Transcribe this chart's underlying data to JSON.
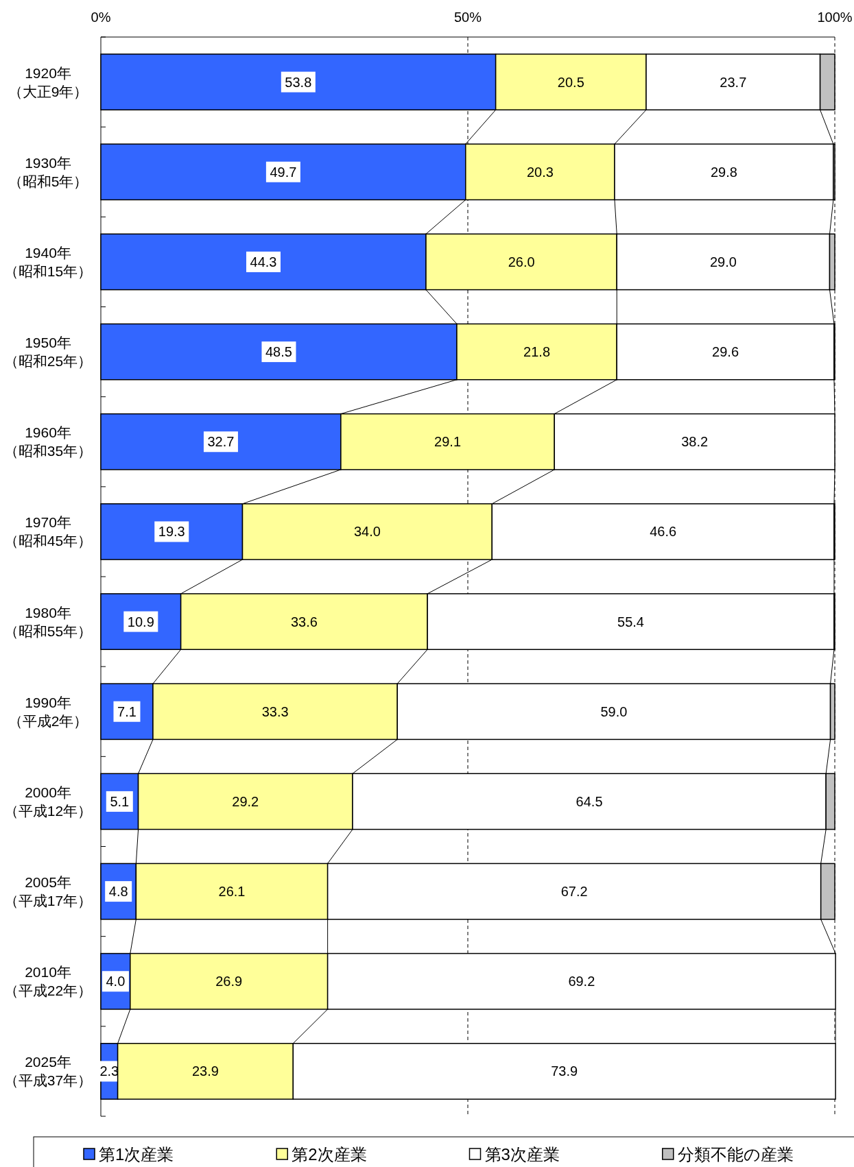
{
  "chart_data": {
    "type": "bar",
    "orientation": "horizontal",
    "stacked": true,
    "categories": [
      "1920年（大正9年）",
      "1930年（昭和5年）",
      "1940年（昭和15年）",
      "1950年（昭和25年）",
      "1960年（昭和35年）",
      "1970年（昭和45年）",
      "1980年（昭和55年）",
      "1990年（平成2年）",
      "2000年（平成12年）",
      "2005年（平成17年）",
      "2010年（平成22年）",
      "2025年（平成37年）"
    ],
    "series": [
      {
        "name": "第1次産業",
        "color": "#3366ff",
        "values": [
          53.8,
          49.7,
          44.3,
          48.5,
          32.7,
          19.3,
          10.9,
          7.1,
          5.1,
          4.8,
          4.0,
          2.3
        ],
        "value_labels": [
          "53.8",
          "49.7",
          "44.3",
          "48.5",
          "32.7",
          "19.3",
          "10.9",
          "7.1",
          "5.1",
          "4.8",
          "4.0",
          "2.3"
        ]
      },
      {
        "name": "第2次産業",
        "color": "#ffff99",
        "values": [
          20.5,
          20.3,
          26.0,
          21.8,
          29.1,
          34.0,
          33.6,
          33.3,
          29.2,
          26.1,
          26.9,
          23.9
        ],
        "value_labels": [
          "20.5",
          "20.3",
          "26.0",
          "21.8",
          "29.1",
          "34.0",
          "33.6",
          "33.3",
          "29.2",
          "26.1",
          "26.9",
          "23.9"
        ]
      },
      {
        "name": "第3次産業",
        "color": "#ffffff",
        "values": [
          23.7,
          29.8,
          29.0,
          29.6,
          38.2,
          46.6,
          55.4,
          59.0,
          64.5,
          67.2,
          69.2,
          73.9
        ],
        "value_labels": [
          "23.7",
          "29.8",
          "29.0",
          "29.6",
          "38.2",
          "46.6",
          "55.4",
          "59.0",
          "64.5",
          "67.2",
          "69.2",
          "73.9"
        ]
      },
      {
        "name": "分類不能の産業",
        "color": "#c0c0c0",
        "values": [
          2.0,
          0.2,
          0.7,
          0.1,
          0.0,
          0.1,
          0.1,
          0.6,
          1.2,
          1.9,
          0.0,
          0.0
        ]
      }
    ],
    "xlim": [
      0,
      100
    ],
    "xticks": [
      {
        "value": 0,
        "label": "0%"
      },
      {
        "value": 50,
        "label": "50%"
      },
      {
        "value": 100,
        "label": "100%"
      }
    ],
    "grid": "x",
    "legend": "bottom"
  }
}
